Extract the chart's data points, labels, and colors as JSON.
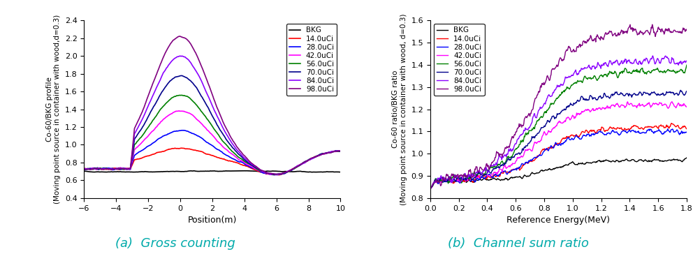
{
  "left_chart": {
    "xlabel": "Position(m)",
    "ylabel": "Co-60/BKG profile\n(Moving point source in container with wood,d=0.3)",
    "xlim": [
      -6,
      10
    ],
    "ylim": [
      0.4,
      2.4
    ],
    "yticks": [
      0.4,
      0.6,
      0.8,
      1.0,
      1.2,
      1.4,
      1.6,
      1.8,
      2.0,
      2.2,
      2.4
    ],
    "xticks": [
      -6,
      -4,
      -2,
      0,
      2,
      4,
      6,
      8,
      10
    ],
    "caption": "(a)  Gross counting"
  },
  "right_chart": {
    "xlabel": "Reference Energy(MeV)",
    "ylabel": "Co-60 ratio/BKG ratio\n(Moving point source in container with wood, d=0.3)",
    "xlim": [
      0.0,
      1.8
    ],
    "ylim": [
      0.8,
      1.6
    ],
    "yticks": [
      0.8,
      0.9,
      1.0,
      1.1,
      1.2,
      1.3,
      1.4,
      1.5,
      1.6
    ],
    "xticks": [
      0.0,
      0.2,
      0.4,
      0.6,
      0.8,
      1.0,
      1.2,
      1.4,
      1.6,
      1.8
    ],
    "caption": "(b)  Channel sum ratio"
  },
  "series": [
    {
      "label": "BKG",
      "color": "#000000"
    },
    {
      "label": "14.0uCi",
      "color": "#ff0000"
    },
    {
      "label": "28.0uCi",
      "color": "#0000ff"
    },
    {
      "label": "42.0uCi",
      "color": "#ff00ff"
    },
    {
      "label": "56.0uCi",
      "color": "#008000"
    },
    {
      "label": "70.0uCi",
      "color": "#00008b"
    },
    {
      "label": "84.0uCi",
      "color": "#8b00ff"
    },
    {
      "label": "98.0uCi",
      "color": "#800080"
    }
  ],
  "caption_color": "#00aaaa",
  "caption_fontsize": 13
}
